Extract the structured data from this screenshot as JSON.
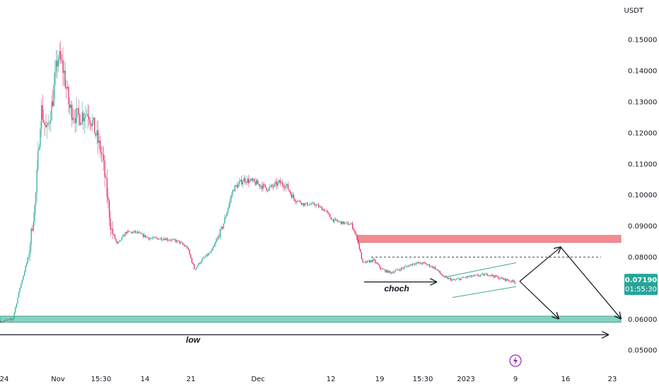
{
  "chart_data": {
    "type": "candlestick",
    "currency": "USDT",
    "colors": {
      "up": "#26a69a",
      "down": "#e0245e",
      "supply_zone": "#f28b8f",
      "demand_zone": "#86d0bf",
      "price_badge": "#26a69a"
    },
    "y_axis": {
      "ylim": [
        0.0455,
        0.1605
      ],
      "ticks": [
        "0.15000",
        "0.14000",
        "0.13000",
        "0.12000",
        "0.11000",
        "0.10000",
        "0.09000",
        "0.08000",
        "0.06000",
        "0.05000"
      ],
      "tick_values": [
        0.15,
        0.14,
        0.13,
        0.12,
        0.11,
        0.1,
        0.09,
        0.08,
        0.06,
        0.05
      ]
    },
    "x_axis": {
      "xlim": [
        0,
        880
      ],
      "ticks": [
        {
          "label": "24",
          "x": 6
        },
        {
          "label": "Nov",
          "x": 82
        },
        {
          "label": "15:30",
          "x": 143
        },
        {
          "label": "14",
          "x": 205
        },
        {
          "label": "21",
          "x": 270
        },
        {
          "label": "Dec",
          "x": 365
        },
        {
          "label": "12",
          "x": 468
        },
        {
          "label": "19",
          "x": 537
        },
        {
          "label": "15:30",
          "x": 598
        },
        {
          "label": "2023",
          "x": 659
        },
        {
          "label": "9",
          "x": 729
        },
        {
          "label": "16",
          "x": 800
        },
        {
          "label": "23",
          "x": 866
        }
      ]
    },
    "current_price": "0.07190",
    "countdown": "01:55:30",
    "path": [
      [
        0,
        0.0592
      ],
      [
        18,
        0.06
      ],
      [
        28,
        0.07
      ],
      [
        40,
        0.08
      ],
      [
        50,
        0.098
      ],
      [
        58,
        0.128
      ],
      [
        66,
        0.12
      ],
      [
        74,
        0.13
      ],
      [
        82,
        0.145
      ],
      [
        90,
        0.14
      ],
      [
        98,
        0.128
      ],
      [
        110,
        0.125
      ],
      [
        125,
        0.127
      ],
      [
        135,
        0.12
      ],
      [
        145,
        0.112
      ],
      [
        152,
        0.099
      ],
      [
        157,
        0.089
      ],
      [
        166,
        0.084
      ],
      [
        178,
        0.088
      ],
      [
        192,
        0.088
      ],
      [
        212,
        0.086
      ],
      [
        232,
        0.086
      ],
      [
        252,
        0.085
      ],
      [
        265,
        0.083
      ],
      [
        275,
        0.076
      ],
      [
        285,
        0.079
      ],
      [
        300,
        0.082
      ],
      [
        315,
        0.09
      ],
      [
        330,
        0.102
      ],
      [
        345,
        0.105
      ],
      [
        360,
        0.104
      ],
      [
        380,
        0.102
      ],
      [
        395,
        0.104
      ],
      [
        405,
        0.103
      ],
      [
        415,
        0.099
      ],
      [
        430,
        0.097
      ],
      [
        445,
        0.097
      ],
      [
        460,
        0.095
      ],
      [
        470,
        0.092
      ],
      [
        485,
        0.091
      ],
      [
        497,
        0.0905
      ],
      [
        505,
        0.086
      ],
      [
        513,
        0.078
      ],
      [
        528,
        0.079
      ],
      [
        540,
        0.076
      ],
      [
        552,
        0.075
      ],
      [
        570,
        0.0765
      ],
      [
        585,
        0.078
      ],
      [
        600,
        0.078
      ],
      [
        615,
        0.0765
      ],
      [
        628,
        0.0735
      ],
      [
        642,
        0.0725
      ],
      [
        658,
        0.0735
      ],
      [
        675,
        0.074
      ],
      [
        690,
        0.0745
      ],
      [
        710,
        0.073
      ],
      [
        730,
        0.0719
      ]
    ],
    "zones": [
      {
        "name": "supply",
        "y_low": 0.0847,
        "y_high": 0.087,
        "x_start": 506,
        "x_end": 878
      },
      {
        "name": "demand",
        "y_low": 0.059,
        "y_high": 0.061,
        "x_start": 0,
        "x_end": 878
      }
    ],
    "dashed_level": {
      "y": 0.08,
      "x_start": 525,
      "x_end": 850
    },
    "channel": [
      {
        "x1": 628,
        "y1": 0.0735,
        "x2": 730,
        "y2": 0.0782
      },
      {
        "x1": 640,
        "y1": 0.067,
        "x2": 730,
        "y2": 0.0705
      }
    ],
    "arrows": [
      {
        "x1": 515,
        "y1": 0.072,
        "x2": 617,
        "y2": 0.072
      },
      {
        "x1": 735,
        "y1": 0.0722,
        "x2": 793,
        "y2": 0.0832
      },
      {
        "x1": 793,
        "y1": 0.0832,
        "x2": 878,
        "y2": 0.0602
      },
      {
        "x1": 735,
        "y1": 0.0722,
        "x2": 790,
        "y2": 0.0602
      },
      {
        "x1": 0,
        "y1": 0.055,
        "x2": 860,
        "y2": 0.055
      }
    ],
    "labels": [
      {
        "text": "choch",
        "x": 561,
        "y": 0.069
      },
      {
        "text": "low",
        "x": 273,
        "y": 0.0525
      }
    ]
  }
}
